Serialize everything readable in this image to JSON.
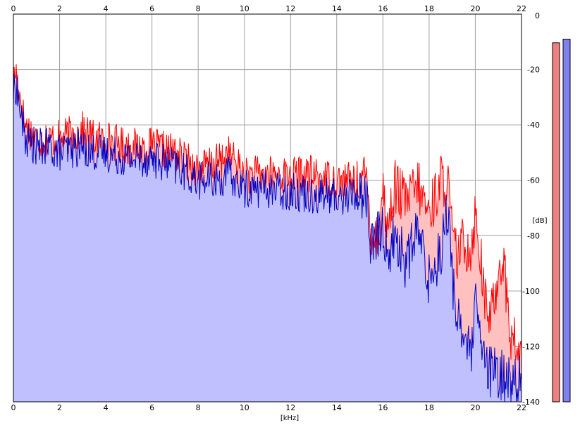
{
  "chart_data": {
    "type": "area",
    "xlabel": "[kHz]",
    "ylabel": "[dB]",
    "xlim": [
      0,
      22
    ],
    "ylim": [
      -140,
      0
    ],
    "grid": true,
    "x_ticks": [
      "0",
      "2",
      "4",
      "6",
      "8",
      "10",
      "12",
      "14",
      "16",
      "18",
      "20",
      "22"
    ],
    "y_ticks": [
      "0",
      "-20",
      "-40",
      "-60",
      "-80",
      "-100",
      "-120",
      "-140"
    ],
    "x_tick_values": [
      0,
      2,
      4,
      6,
      8,
      10,
      12,
      14,
      16,
      18,
      20,
      22
    ],
    "y_tick_values": [
      0,
      -20,
      -40,
      -60,
      -80,
      -100,
      -120,
      -140
    ],
    "series": [
      {
        "color": "#ff0000",
        "fill": "#ffc0c0",
        "x": [
          0,
          0.1,
          0.3,
          0.5,
          1.0,
          1.5,
          2.0,
          3.0,
          3.5,
          4.0,
          5.0,
          6.0,
          7.0,
          8.0,
          9.0,
          9.3,
          10.0,
          11.0,
          12.0,
          13.0,
          14.0,
          15.0,
          15.3,
          15.5,
          15.8,
          16.0,
          16.2,
          16.5,
          17.0,
          17.5,
          18.0,
          18.5,
          18.8,
          19.0,
          19.2,
          19.5,
          19.8,
          20.0,
          20.2,
          20.5,
          20.8,
          21.0,
          21.2,
          21.5,
          22.0
        ],
        "y": [
          -25,
          -20,
          -30,
          -40,
          -45,
          -45,
          -45,
          -42,
          -45,
          -45,
          -48,
          -48,
          -50,
          -56,
          -53,
          -50,
          -58,
          -58,
          -58,
          -58,
          -60,
          -60,
          -60,
          -78,
          -80,
          -63,
          -78,
          -62,
          -68,
          -62,
          -72,
          -60,
          -60,
          -80,
          -88,
          -82,
          -85,
          -72,
          -85,
          -110,
          -105,
          -92,
          -87,
          -115,
          -125
        ]
      },
      {
        "color": "#0000c0",
        "fill": "#c0c0ff",
        "x": [
          0,
          0.1,
          0.3,
          0.5,
          1.0,
          1.5,
          2.0,
          3.0,
          3.5,
          4.0,
          5.0,
          6.0,
          7.0,
          8.0,
          9.0,
          9.3,
          10.0,
          11.0,
          12.0,
          13.0,
          14.0,
          15.0,
          15.3,
          15.5,
          15.8,
          16.0,
          16.2,
          16.5,
          17.0,
          17.5,
          18.0,
          18.5,
          18.8,
          19.0,
          19.2,
          19.5,
          19.8,
          20.0,
          20.2,
          20.5,
          20.8,
          21.0,
          21.2,
          21.5,
          22.0
        ],
        "y": [
          -30,
          -25,
          -35,
          -45,
          -48,
          -48,
          -50,
          -48,
          -50,
          -50,
          -52,
          -52,
          -55,
          -60,
          -60,
          -58,
          -63,
          -63,
          -64,
          -65,
          -66,
          -65,
          -66,
          -85,
          -80,
          -76,
          -88,
          -80,
          -90,
          -78,
          -96,
          -85,
          -70,
          -95,
          -108,
          -115,
          -125,
          -105,
          -118,
          -128,
          -130,
          -131,
          -130,
          -132,
          -133
        ]
      }
    ],
    "level_meters": [
      {
        "color": "#f08080",
        "level": 0.97
      },
      {
        "color": "#8080f0",
        "level": 0.98
      }
    ]
  }
}
